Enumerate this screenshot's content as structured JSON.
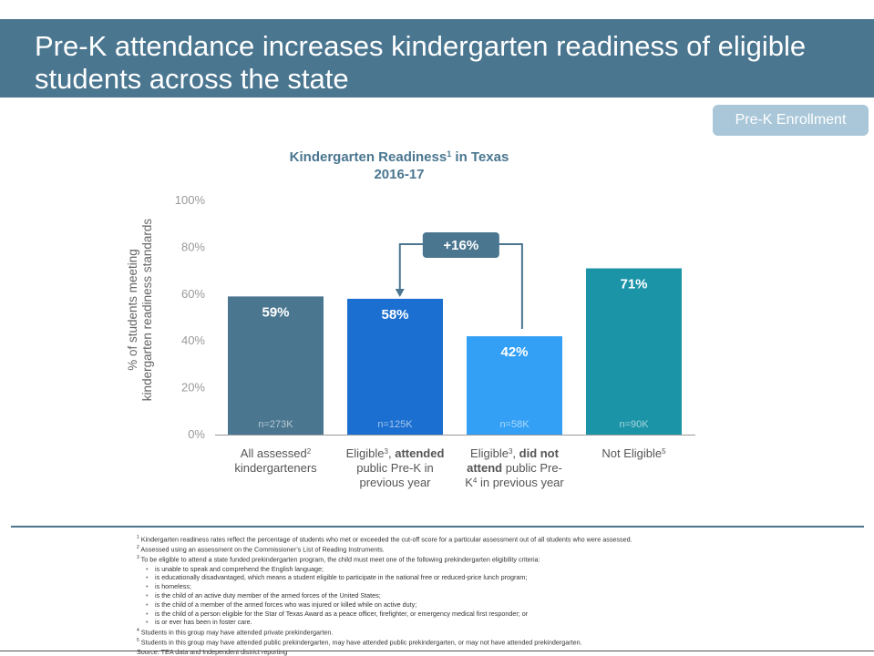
{
  "header": {
    "title": "Pre-K attendance increases kindergarten readiness of eligible students across the state"
  },
  "tag_button": {
    "label": "Pre-K Enrollment"
  },
  "chart_data": {
    "type": "bar",
    "title_line1": "Kindergarten Readiness",
    "title_sup": "1",
    "title_line1_suffix": " in Texas",
    "title_line2": "2016-17",
    "ylabel_line1": "% of students meeting",
    "ylabel_line2": "kindergarten readiness standards",
    "ylim": [
      0,
      100
    ],
    "yticks": [
      0,
      20,
      40,
      60,
      80,
      100
    ],
    "ytick_labels": [
      "0%",
      "20%",
      "40%",
      "60%",
      "80%",
      "100%"
    ],
    "grid": false,
    "values": [
      59,
      58,
      42,
      71
    ],
    "value_labels": [
      "59%",
      "58%",
      "42%",
      "71%"
    ],
    "n_labels": [
      "n=273K",
      "n=125K",
      "n=58K",
      "n=90K"
    ],
    "bar_colors": [
      "#4a7690",
      "#1a6fd0",
      "#33a0f5",
      "#1c94a8"
    ],
    "categories": [
      [
        [
          {
            "t": "All assessed"
          },
          {
            "t": "2",
            "sup": true
          }
        ],
        [
          {
            "t": "kindergarteners"
          }
        ]
      ],
      [
        [
          {
            "t": "Eligible"
          },
          {
            "t": "3",
            "sup": true
          },
          {
            "t": ", "
          },
          {
            "t": "attended",
            "b": true
          }
        ],
        [
          {
            "t": "public Pre-K in"
          }
        ],
        [
          {
            "t": "previous year"
          }
        ]
      ],
      [
        [
          {
            "t": "Eligible"
          },
          {
            "t": "3",
            "sup": true
          },
          {
            "t": ", "
          },
          {
            "t": "did not",
            "b": true
          }
        ],
        [
          {
            "t": "attend",
            "b": true
          },
          {
            "t": " public Pre-"
          }
        ],
        [
          {
            "t": "K"
          },
          {
            "t": "4",
            "sup": true
          },
          {
            "t": " in previous year"
          }
        ]
      ],
      [
        [
          {
            "t": "Not Eligible"
          },
          {
            "t": "5",
            "sup": true
          }
        ]
      ]
    ],
    "annotation": {
      "label": "+16%",
      "from_category": 2,
      "to_category": 1
    }
  },
  "footnotes": [
    {
      "kind": "fn",
      "mark": "1",
      "text": "Kindergarten readiness rates reflect the percentage of students who met or exceeded the cut-off score for a particular assessment out of all students who were assessed."
    },
    {
      "kind": "fn",
      "mark": "2",
      "text": "Assessed using an assessment on the Commissioner’s List of Reading Instruments."
    },
    {
      "kind": "fn",
      "mark": "3",
      "text": "To be eligible to attend a state funded prekindergarten program, the child must meet one of the following prekindergarten eligibility criteria:"
    },
    {
      "kind": "sub",
      "text": "is unable to speak and comprehend the English language;"
    },
    {
      "kind": "sub",
      "text": "is educationally disadvantaged, which means a student eligible to participate in the national free or reduced-price lunch program;"
    },
    {
      "kind": "sub",
      "text": "is homeless;"
    },
    {
      "kind": "sub",
      "text": "is the child of an active duty member of the armed forces of the United States;"
    },
    {
      "kind": "sub",
      "text": "is the child of a member of the armed forces who was injured or killed while on active duty;"
    },
    {
      "kind": "sub",
      "text": "is the child of a person eligible for the Star of Texas Award as a peace officer, firefighter, or emergency medical first responder; or"
    },
    {
      "kind": "sub",
      "text": "is or ever has been in foster care."
    },
    {
      "kind": "fn",
      "mark": "4",
      "text": "Students in this group may have attended private prekindergarten."
    },
    {
      "kind": "fn",
      "mark": "5",
      "text": "Students in this group may have attended public prekindergarten, may have attended public prekindergarten, or may not have attended prekindergarten."
    },
    {
      "kind": "fn",
      "mark": "",
      "text": "Source: TEA data and Independent district reporting"
    }
  ]
}
